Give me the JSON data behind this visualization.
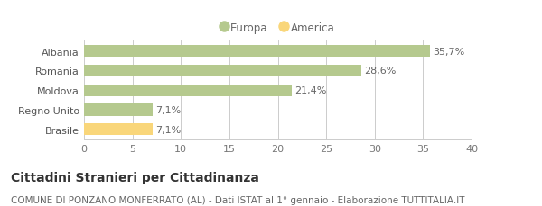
{
  "categories": [
    "Albania",
    "Romania",
    "Moldova",
    "Regno Unito",
    "Brasile"
  ],
  "values": [
    35.7,
    28.6,
    21.4,
    7.1,
    7.1
  ],
  "labels": [
    "35,7%",
    "28,6%",
    "21,4%",
    "7,1%",
    "7,1%"
  ],
  "bar_colors": [
    "#b5c98e",
    "#b5c98e",
    "#b5c98e",
    "#b5c98e",
    "#f9d67a"
  ],
  "legend_colors": {
    "Europa": "#b5c98e",
    "America": "#f9d67a"
  },
  "xlim": [
    0,
    40
  ],
  "xticks": [
    0,
    5,
    10,
    15,
    20,
    25,
    30,
    35,
    40
  ],
  "title": "Cittadini Stranieri per Cittadinanza",
  "subtitle": "COMUNE DI PONZANO MONFERRATO (AL) - Dati ISTAT al 1° gennaio - Elaborazione TUTTITALIA.IT",
  "title_fontsize": 10,
  "subtitle_fontsize": 7.5,
  "background_color": "#ffffff",
  "bar_height": 0.6,
  "label_fontsize": 8,
  "tick_fontsize": 8,
  "grid_color": "#cccccc"
}
